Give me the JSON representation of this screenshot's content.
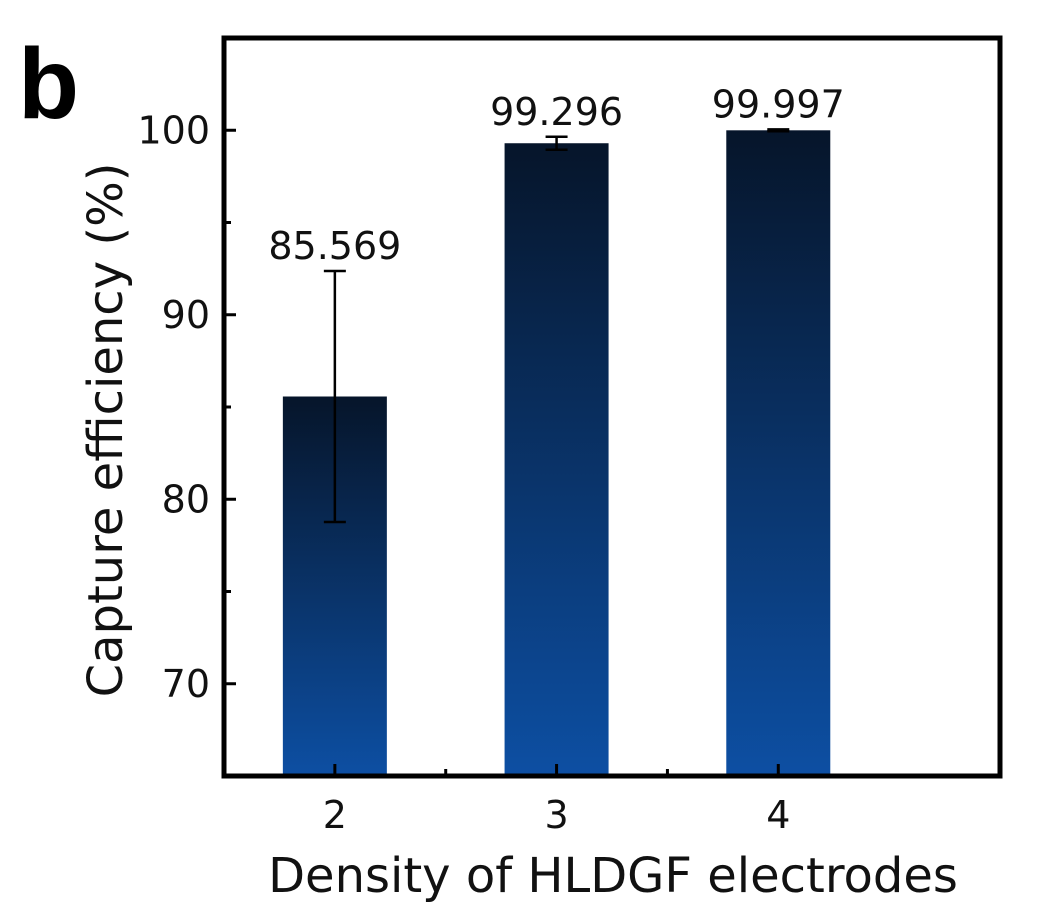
{
  "panel_label": "b",
  "colors": {
    "bar_top": "#06152a",
    "bar_bottom": "#0d4fa3",
    "axis": "#000000",
    "text": "#111111"
  },
  "chart_data": {
    "type": "bar",
    "categories": [
      "2",
      "3",
      "4"
    ],
    "values": [
      85.569,
      99.296,
      99.997
    ],
    "errors": [
      6.8,
      0.35,
      0.05
    ],
    "data_labels": [
      "85.569",
      "99.296",
      "99.997"
    ],
    "xlabel": "Density of HLDGF electrodes",
    "ylabel": "Capture efficiency (%)",
    "ylim": [
      65,
      105
    ],
    "yticks": [
      70,
      80,
      90,
      100
    ],
    "ytick_labels": [
      "70",
      "80",
      "90",
      "100"
    ],
    "grid": false,
    "legend": "none"
  }
}
